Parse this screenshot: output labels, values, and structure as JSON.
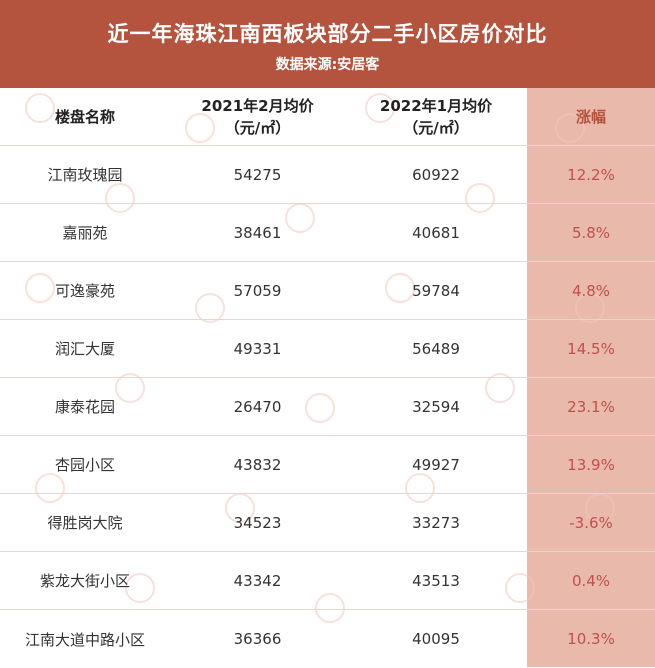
{
  "header": {
    "title": "近一年海珠江南西板块部分二手小区房价对比",
    "source": "数据来源:安居客"
  },
  "columns": {
    "name": "楼盘名称",
    "price_2021_line1": "2021年2月均价",
    "price_2021_line2": "（元/㎡）",
    "price_2022_line1": "2022年1月均价",
    "price_2022_line2": "（元/㎡）",
    "change": "涨幅"
  },
  "rows": [
    {
      "name": "江南玫瑰园",
      "price_2021": "54275",
      "price_2022": "60922",
      "change": "12.2%"
    },
    {
      "name": "嘉丽苑",
      "price_2021": "38461",
      "price_2022": "40681",
      "change": "5.8%"
    },
    {
      "name": "可逸豪苑",
      "price_2021": "57059",
      "price_2022": "59784",
      "change": "4.8%"
    },
    {
      "name": "润汇大厦",
      "price_2021": "49331",
      "price_2022": "56489",
      "change": "14.5%"
    },
    {
      "name": "康泰花园",
      "price_2021": "26470",
      "price_2022": "32594",
      "change": "23.1%"
    },
    {
      "name": "杏园小区",
      "price_2021": "43832",
      "price_2022": "49927",
      "change": "13.9%"
    },
    {
      "name": "得胜岗大院",
      "price_2021": "34523",
      "price_2022": "33273",
      "change": "-3.6%"
    },
    {
      "name": "紫龙大街小区",
      "price_2021": "43342",
      "price_2022": "43513",
      "change": "0.4%"
    },
    {
      "name": "江南大道中路小区",
      "price_2021": "36366",
      "price_2022": "40095",
      "change": "10.3%"
    }
  ],
  "colors": {
    "banner": "#b4533e",
    "highlight_column": "#e9b9ab",
    "change_text": "#c0504d"
  }
}
